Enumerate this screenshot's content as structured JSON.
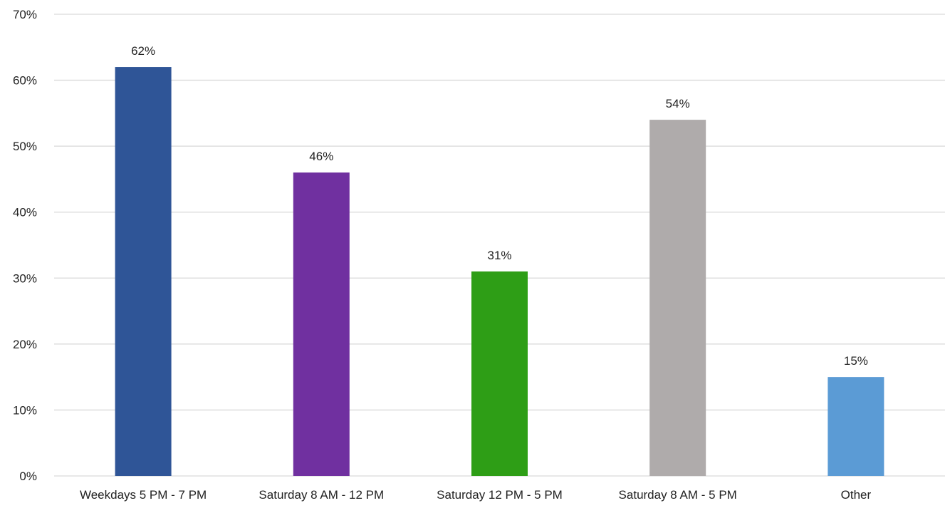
{
  "chart_data": {
    "type": "bar",
    "title": "",
    "xlabel": "",
    "ylabel": "",
    "categories": [
      "Weekdays 5 PM - 7 PM",
      "Saturday 8 AM - 12 PM",
      "Saturday 12 PM - 5 PM",
      "Saturday 8 AM - 5 PM",
      "Other"
    ],
    "values": [
      62,
      46,
      31,
      54,
      15
    ],
    "data_labels": [
      "62%",
      "46%",
      "31%",
      "54%",
      "15%"
    ],
    "colors": [
      "#2F5597",
      "#7030A0",
      "#2E9E16",
      "#AFABAB",
      "#5B9BD5"
    ],
    "ylim": [
      0,
      70
    ],
    "y_ticks": [
      0,
      10,
      20,
      30,
      40,
      50,
      60,
      70
    ],
    "y_tick_labels": [
      "0%",
      "10%",
      "20%",
      "30%",
      "40%",
      "50%",
      "60%",
      "70%"
    ],
    "grid": true,
    "gridline_color": "#D9D9D9",
    "legend": "none"
  }
}
